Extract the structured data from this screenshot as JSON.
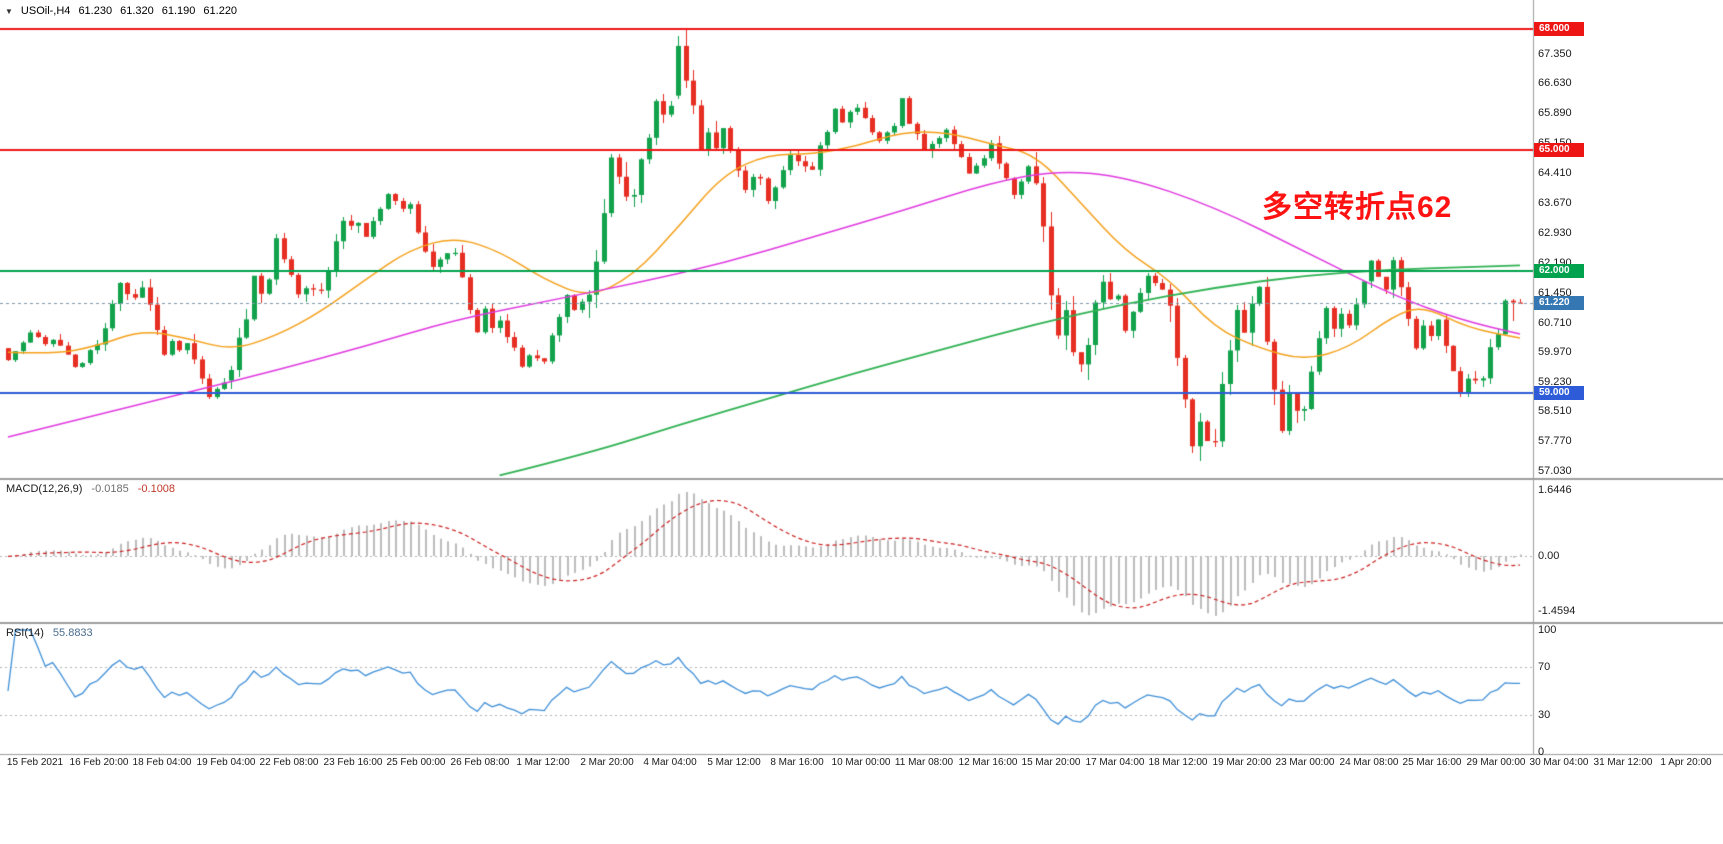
{
  "header": {
    "symbol_timeframe": "USOil-,H4",
    "open": "61.230",
    "high": "61.320",
    "low": "61.190",
    "close": "61.220"
  },
  "annotation": {
    "text": "多空转折点62",
    "color": "#ff1212"
  },
  "price_axis": {
    "labels": [
      "67.350",
      "66.630",
      "65.890",
      "65.150",
      "64.410",
      "63.670",
      "62.930",
      "62.190",
      "61.450",
      "60.710",
      "59.970",
      "59.230",
      "58.510",
      "57.770",
      "57.030"
    ]
  },
  "levels": [
    {
      "price": 68.0,
      "label": "68.000",
      "color": "#ee1515"
    },
    {
      "price": 65.0,
      "label": "65.000",
      "color": "#ee1515"
    },
    {
      "price": 62.0,
      "label": "62.000",
      "color": "#00a24d"
    },
    {
      "price": 59.0,
      "label": "59.000",
      "color": "#2e5cd8"
    }
  ],
  "current_price": {
    "value": 61.22,
    "label": "61.220",
    "badge": "#3577b2"
  },
  "macd": {
    "name": "MACD(12,26,9)",
    "value": "-0.0185",
    "signal": "-0.1008",
    "axis_max": "1.6446",
    "axis_zero": "0.00",
    "axis_min": "-1.4594"
  },
  "rsi": {
    "name": "RSI(14)",
    "value": "55.8833",
    "axis": [
      "100",
      "70",
      "30",
      "0"
    ],
    "axis_values": [
      100,
      70,
      30,
      0
    ],
    "upper_level": 70,
    "lower_level": 30
  },
  "time_axis": [
    "15 Feb 2021",
    "16 Feb 20:00",
    "18 Feb 04:00",
    "19 Feb 04:00",
    "22 Feb 08:00",
    "23 Feb 16:00",
    "25 Feb 00:00",
    "26 Feb 08:00",
    "1 Mar 12:00",
    "2 Mar 20:00",
    "4 Mar 04:00",
    "5 Mar 12:00",
    "8 Mar 16:00",
    "10 Mar 00:00",
    "11 Mar 08:00",
    "12 Mar 16:00",
    "15 Mar 20:00",
    "17 Mar 04:00",
    "18 Mar 12:00",
    "19 Mar 20:00",
    "23 Mar 00:00",
    "24 Mar 08:00",
    "25 Mar 16:00",
    "29 Mar 00:00",
    "30 Mar 04:00",
    "31 Mar 12:00",
    "1 Apr 20:00"
  ],
  "chart_data": {
    "type": "candlestick",
    "symbol": "USOil-",
    "timeframe": "H4",
    "title": "USOil- H4 with MACD(12,26,9) and RSI(14)",
    "ylim": [
      56.9,
      68.5
    ],
    "current_ohlc": {
      "o": 61.23,
      "h": 61.32,
      "l": 61.19,
      "c": 61.22
    },
    "daily_ohlc_estimated": [
      [
        "15 Feb",
        60.1,
        60.55,
        59.75,
        60.2
      ],
      [
        "16 Feb",
        60.2,
        60.45,
        59.6,
        60.05
      ],
      [
        "17 Feb",
        60.05,
        61.75,
        59.95,
        61.35
      ],
      [
        "18 Feb",
        61.35,
        61.8,
        59.9,
        60.05
      ],
      [
        "19 Feb",
        60.05,
        60.45,
        58.85,
        59.25
      ],
      [
        "22 Feb",
        59.3,
        61.95,
        59.1,
        61.8
      ],
      [
        "23 Feb",
        61.8,
        62.95,
        61.25,
        61.55
      ],
      [
        "24 Feb",
        61.55,
        63.4,
        61.35,
        63.2
      ],
      [
        "25 Feb",
        63.2,
        63.95,
        62.8,
        63.55
      ],
      [
        "26 Feb",
        63.55,
        63.75,
        61.95,
        62.45
      ],
      [
        "1 Mar",
        62.45,
        62.65,
        60.45,
        60.6
      ],
      [
        "2 Mar",
        60.6,
        60.95,
        59.6,
        59.85
      ],
      [
        "3 Mar",
        59.85,
        61.45,
        59.7,
        61.25
      ],
      [
        "4 Mar",
        61.25,
        64.9,
        60.85,
        63.85
      ],
      [
        "5 Mar",
        63.85,
        66.4,
        63.6,
        66.1
      ],
      [
        "8 Mar",
        66.35,
        68.0,
        64.85,
        65.05
      ],
      [
        "9 Mar",
        65.05,
        65.6,
        63.85,
        64.3
      ],
      [
        "10 Mar",
        64.3,
        65.0,
        63.55,
        64.6
      ],
      [
        "11 Mar",
        64.6,
        66.1,
        64.35,
        65.95
      ],
      [
        "12 Mar",
        65.95,
        66.2,
        65.15,
        65.6
      ],
      [
        "15 Mar",
        65.6,
        66.35,
        64.8,
        65.3
      ],
      [
        "16 Mar",
        65.3,
        65.6,
        64.4,
        64.8
      ],
      [
        "17 Mar",
        64.8,
        65.35,
        63.8,
        64.6
      ],
      [
        "18 Mar",
        64.6,
        64.95,
        59.9,
        60.0
      ],
      [
        "19 Mar",
        60.0,
        61.95,
        59.3,
        61.4
      ],
      [
        "22 Mar",
        61.4,
        61.95,
        60.35,
        61.55
      ],
      [
        "23 Mar",
        61.55,
        61.7,
        57.3,
        57.8
      ],
      [
        "24 Mar",
        57.8,
        61.4,
        57.65,
        61.2
      ],
      [
        "25 Mar",
        61.2,
        61.85,
        57.95,
        58.55
      ],
      [
        "26 Mar",
        58.55,
        61.15,
        58.3,
        60.95
      ],
      [
        "29 Mar",
        60.95,
        62.3,
        60.55,
        61.55
      ],
      [
        "30 Mar",
        61.55,
        62.35,
        60.05,
        60.4
      ],
      [
        "31 Mar",
        60.4,
        60.95,
        58.9,
        59.3
      ],
      [
        "1 Apr",
        59.3,
        61.32,
        59.15,
        61.22
      ]
    ],
    "moving_averages": {
      "fast_orange": [
        [
          0,
          60.0
        ],
        [
          6,
          59.95
        ],
        [
          12,
          60.15
        ],
        [
          18,
          60.55
        ],
        [
          24,
          60.35
        ],
        [
          30,
          60.05
        ],
        [
          36,
          60.4
        ],
        [
          42,
          61.0
        ],
        [
          48,
          61.8
        ],
        [
          54,
          62.55
        ],
        [
          60,
          62.85
        ],
        [
          66,
          62.5
        ],
        [
          72,
          61.8
        ],
        [
          78,
          61.35
        ],
        [
          84,
          61.9
        ],
        [
          90,
          63.1
        ],
        [
          96,
          64.4
        ],
        [
          102,
          64.9
        ],
        [
          108,
          64.9
        ],
        [
          114,
          65.1
        ],
        [
          120,
          65.45
        ],
        [
          126,
          65.45
        ],
        [
          132,
          65.15
        ],
        [
          138,
          64.9
        ],
        [
          144,
          63.7
        ],
        [
          150,
          62.5
        ],
        [
          156,
          61.8
        ],
        [
          162,
          60.6
        ],
        [
          168,
          60.1
        ],
        [
          174,
          59.8
        ],
        [
          180,
          60.1
        ],
        [
          186,
          60.9
        ],
        [
          190,
          61.15
        ],
        [
          196,
          60.6
        ],
        [
          203,
          60.35
        ]
      ],
      "mid_magenta": [
        [
          0,
          57.9
        ],
        [
          12,
          58.45
        ],
        [
          24,
          59.0
        ],
        [
          36,
          59.55
        ],
        [
          48,
          60.15
        ],
        [
          60,
          60.8
        ],
        [
          72,
          61.25
        ],
        [
          84,
          61.7
        ],
        [
          96,
          62.2
        ],
        [
          108,
          62.85
        ],
        [
          120,
          63.5
        ],
        [
          132,
          64.2
        ],
        [
          141,
          64.5
        ],
        [
          150,
          64.35
        ],
        [
          162,
          63.6
        ],
        [
          174,
          62.5
        ],
        [
          186,
          61.4
        ],
        [
          195,
          60.8
        ],
        [
          203,
          60.45
        ]
      ],
      "slow_green": [
        [
          66,
          56.95
        ],
        [
          78,
          57.5
        ],
        [
          90,
          58.2
        ],
        [
          102,
          58.85
        ],
        [
          114,
          59.5
        ],
        [
          126,
          60.1
        ],
        [
          138,
          60.7
        ],
        [
          150,
          61.2
        ],
        [
          162,
          61.6
        ],
        [
          174,
          61.9
        ],
        [
          186,
          62.05
        ],
        [
          195,
          62.1
        ],
        [
          203,
          62.15
        ]
      ]
    },
    "macd_current": {
      "macd": -0.0185,
      "signal": -0.1008,
      "scale_max": 1.6446,
      "scale_min": -1.4594
    },
    "rsi_current": 55.8833,
    "colors": {
      "up": "#12a24c",
      "down": "#e62e22",
      "ma_fast": "#f5a11b",
      "ma_mid": "#e03ae0",
      "ma_slow": "#30b253",
      "macd_hist": "#bdbdbd",
      "macd_signal": "#cc2222",
      "rsi_line": "#4090d8",
      "grid_dotted": "#b5b5b5",
      "separator": "#9e9e9e",
      "current_price_line": "#7f97aa"
    }
  }
}
